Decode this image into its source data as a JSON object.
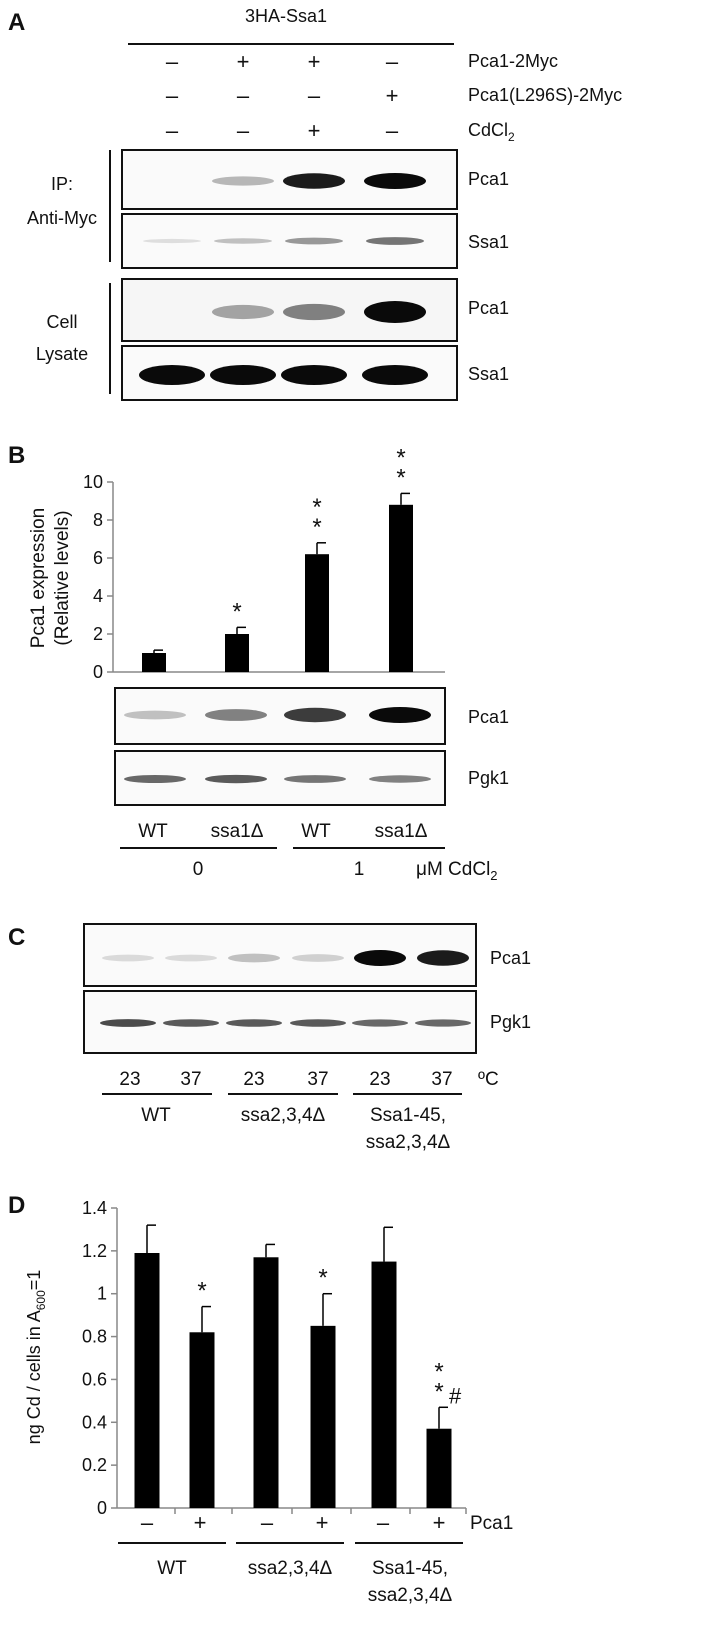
{
  "panel_a": {
    "letter": "A",
    "construct": "3HA-Ssa1",
    "conditions": [
      {
        "label": "Pca1-2Myc",
        "signs": [
          "–",
          "+",
          "+",
          "–"
        ]
      },
      {
        "label": "Pca1(L296S)-2Myc",
        "signs": [
          "–",
          "–",
          "–",
          "+"
        ]
      },
      {
        "label": "CdCl",
        "sub": "2",
        "signs": [
          "–",
          "–",
          "+",
          "–"
        ]
      }
    ],
    "groups": [
      {
        "lines": [
          "IP:",
          "Anti-Myc"
        ]
      },
      {
        "lines": [
          "Cell",
          "Lysate"
        ]
      }
    ],
    "blots": [
      {
        "label": "Pca1",
        "band_intensity": [
          0.0,
          0.35,
          0.95,
          1.0
        ]
      },
      {
        "label": "Ssa1",
        "band_intensity": [
          0.1,
          0.3,
          0.5,
          0.65
        ]
      },
      {
        "label": "Pca1",
        "band_intensity": [
          0.0,
          0.45,
          0.6,
          1.0
        ]
      },
      {
        "label": "Ssa1",
        "band_intensity": [
          1.0,
          1.0,
          1.0,
          1.0
        ]
      }
    ]
  },
  "panel_b": {
    "letter": "B",
    "blots": [
      {
        "label": "Pca1",
        "band_intensity": [
          0.3,
          0.6,
          0.85,
          1.0
        ]
      },
      {
        "label": "Pgk1",
        "band_intensity": [
          0.7,
          0.75,
          0.65,
          0.6
        ]
      }
    ],
    "lanes": [
      "WT",
      "ssa1Δ",
      "WT",
      "ssa1Δ"
    ],
    "doses": [
      "0",
      "1"
    ],
    "dose_unit": "μM CdCl",
    "dose_unit_sub": "2"
  },
  "panel_c": {
    "letter": "C",
    "blots": [
      {
        "label": "Pca1",
        "band_intensity": [
          0.12,
          0.12,
          0.3,
          0.2,
          1.0,
          0.95
        ]
      },
      {
        "label": "Pgk1",
        "band_intensity": [
          0.8,
          0.75,
          0.75,
          0.75,
          0.7,
          0.7
        ]
      }
    ],
    "temps": [
      "23",
      "37",
      "23",
      "37",
      "23",
      "37"
    ],
    "temp_unit": "ºC",
    "strains": [
      {
        "lines": [
          "WT"
        ]
      },
      {
        "lines": [
          "ssa2,3,4Δ"
        ]
      },
      {
        "lines": [
          "Ssa1-45,",
          "ssa2,3,4Δ"
        ]
      }
    ]
  },
  "panel_d": {
    "letter": "D",
    "pca1_signs": [
      "–",
      "+",
      "–",
      "+",
      "–",
      "+"
    ],
    "pca1_label": "Pca1",
    "strains": [
      {
        "lines": [
          "WT"
        ]
      },
      {
        "lines": [
          "ssa2,3,4Δ"
        ]
      },
      {
        "lines": [
          "Ssa1-45,",
          "ssa2,3,4Δ"
        ]
      }
    ]
  },
  "chart_data": [
    {
      "type": "bar",
      "ylabel_lines": [
        "Pca1 expression",
        "(Relative levels)"
      ],
      "ylim": [
        0,
        10
      ],
      "yticks": [
        "0",
        "2",
        "4",
        "6",
        "8",
        "10"
      ],
      "categories": [
        "WT 0",
        "ssa1Δ 0",
        "WT 1",
        "ssa1Δ 1"
      ],
      "values": [
        1.0,
        2.0,
        6.2,
        8.8
      ],
      "errors": [
        0.15,
        0.35,
        0.6,
        0.6
      ],
      "annotations": [
        "",
        "*",
        "**",
        "**"
      ],
      "color": "#000000"
    },
    {
      "type": "bar",
      "ylabel": "ng Cd / cells in A",
      "ylabel_sub": "600",
      "ylabel_tail": "=1",
      "ylim": [
        0,
        1.4
      ],
      "yticks": [
        "0",
        "0.2",
        "0.4",
        "0.6",
        "0.8",
        "1",
        "1.2",
        "1.4"
      ],
      "categories": [
        "WT –",
        "WT +",
        "ssa2,3,4Δ –",
        "ssa2,3,4Δ +",
        "Ssa1-45, ssa2,3,4Δ –",
        "Ssa1-45, ssa2,3,4Δ +"
      ],
      "values": [
        1.19,
        0.82,
        1.17,
        0.85,
        1.15,
        0.37
      ],
      "errors": [
        0.13,
        0.12,
        0.06,
        0.15,
        0.16,
        0.1
      ],
      "annotations": [
        "",
        "*",
        "",
        "*",
        "",
        "**#"
      ],
      "color": "#000000"
    }
  ]
}
